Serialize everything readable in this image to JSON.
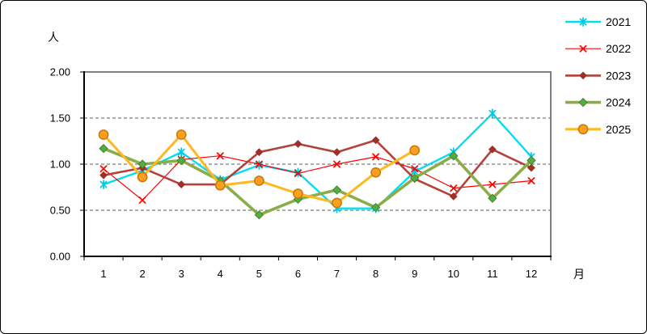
{
  "chart_data": {
    "type": "line",
    "title": "",
    "y_axis_unit_label": "人",
    "x_axis_unit_label": "月",
    "ylim": [
      0.0,
      2.0
    ],
    "y_tick_step": 0.5,
    "y_ticks": [
      "2.00",
      "1.50",
      "1.00",
      "0.50",
      "0.00"
    ],
    "y_tick_values": [
      2.0,
      1.5,
      1.0,
      0.5,
      0.0
    ],
    "x_categories": [
      "1",
      "2",
      "3",
      "4",
      "5",
      "6",
      "7",
      "8",
      "9",
      "10",
      "11",
      "12"
    ],
    "grid": "horizontal dashed gridlines at 0.50 intervals",
    "legend_position": "top-right, vertical, no border",
    "plot_border_color": "#808080",
    "axis_color": "#000000",
    "gridline_color": "#595959",
    "series": [
      {
        "name": "2021",
        "marker": "star",
        "color": "#00DFF0",
        "marker_fill": "#00DFF0",
        "marker_stroke": "#00C8E0",
        "line_width": 2.4,
        "values": [
          0.78,
          0.93,
          1.13,
          0.83,
          0.99,
          0.91,
          0.52,
          0.52,
          0.92,
          1.13,
          1.55,
          1.08
        ]
      },
      {
        "name": "2022",
        "marker": "x",
        "color": "#FF0000",
        "marker_fill": "#FF0000",
        "marker_stroke": "#FF0000",
        "line_width": 1.2,
        "values": [
          0.95,
          0.61,
          1.05,
          1.09,
          1.0,
          0.9,
          1.0,
          1.08,
          0.95,
          0.74,
          0.78,
          0.82
        ]
      },
      {
        "name": "2023",
        "marker": "diamond",
        "color": "#B2423A",
        "marker_fill": "#9E302A",
        "marker_stroke": "#9E302A",
        "line_width": 2.6,
        "values": [
          0.88,
          0.96,
          0.78,
          0.78,
          1.13,
          1.22,
          1.13,
          1.26,
          0.84,
          0.65,
          1.16,
          0.96
        ]
      },
      {
        "name": "2024",
        "marker": "diamond",
        "color": "#8AAD4A",
        "marker_fill": "#4CB04A",
        "marker_stroke": "#567D22",
        "line_width": 3.6,
        "values": [
          1.17,
          1.0,
          1.04,
          0.82,
          0.45,
          0.62,
          0.72,
          0.53,
          0.85,
          1.09,
          0.63,
          1.04
        ]
      },
      {
        "name": "2025",
        "marker": "circle",
        "color": "#FFB81E",
        "marker_fill": "#FF9F1E",
        "marker_stroke": "#C87B12",
        "line_width": 3.0,
        "values": [
          1.32,
          0.86,
          1.32,
          0.77,
          0.82,
          0.68,
          0.58,
          0.91,
          1.15,
          null,
          null,
          null
        ]
      }
    ]
  }
}
